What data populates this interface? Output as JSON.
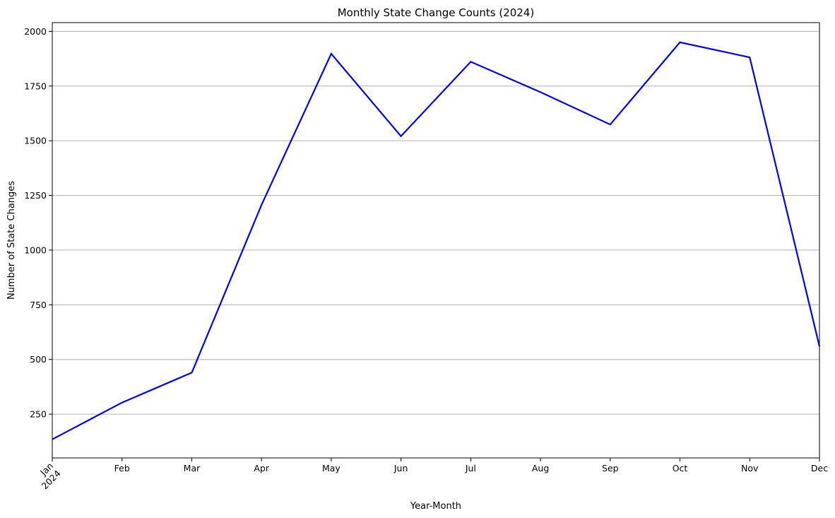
{
  "chart_data": {
    "type": "line",
    "title": "Monthly State Change Counts (2024)",
    "xlabel": "Year-Month",
    "ylabel": "Number of State Changes",
    "x": [
      "Jan",
      "Feb",
      "Mar",
      "Apr",
      "May",
      "Jun",
      "Jul",
      "Aug",
      "Sep",
      "Oct",
      "Nov",
      "Dec"
    ],
    "x_year_label": "2024",
    "series": [
      {
        "values": [
          135,
          303,
          440,
          1207,
          1898,
          1521,
          1861,
          1722,
          1574,
          1950,
          1881,
          560
        ],
        "color": "#0000ff"
      }
    ],
    "ylim": [
      50,
      2040
    ],
    "yticks": [
      250,
      500,
      750,
      1000,
      1250,
      1500,
      1750,
      2000
    ],
    "ytick_labels": [
      "250",
      "500",
      "750",
      "1000",
      "1250",
      "1500",
      "1750",
      "2000"
    ],
    "grid": "horizontal",
    "colors": {
      "grid": "#b0b0b0",
      "axis": "#000000",
      "line": "#0000ff"
    }
  }
}
